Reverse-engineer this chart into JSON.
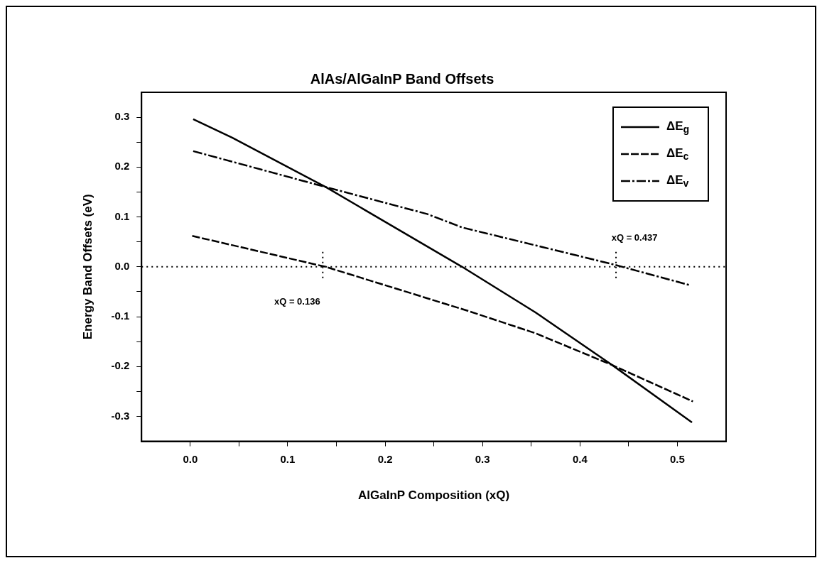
{
  "chart_data": {
    "type": "line",
    "title": "AlAs/AlGaInP Band Offsets",
    "xlabel": "AlGaInP Composition (xQ)",
    "ylabel": "Energy Band Offsets (eV)",
    "xlim": [
      -0.05,
      0.55
    ],
    "ylim": [
      -0.35,
      0.35
    ],
    "xticks": [
      {
        "value": 0,
        "label": "0.0"
      },
      {
        "value": 0.05,
        "label": null
      },
      0.1,
      {
        "value": 0.15,
        "label": null
      },
      0.2,
      {
        "value": 0.25,
        "label": null
      },
      0.3,
      {
        "value": 0.35,
        "label": null
      },
      0.4,
      {
        "value": 0.45,
        "label": null
      },
      0.5
    ],
    "yticks": [
      -0.3,
      {
        "value": -0.25,
        "label": null
      },
      -0.2,
      {
        "value": -0.15,
        "label": null
      },
      -0.1,
      {
        "value": -0.05,
        "label": null
      },
      {
        "value": 0,
        "label": "0.0"
      },
      {
        "value": 0.05,
        "label": null
      },
      0.1,
      {
        "value": 0.15,
        "label": null
      },
      0.2,
      {
        "value": 0.25,
        "label": null
      },
      0.3
    ],
    "grid": false,
    "legend": "top right",
    "marker": "none",
    "series": [
      {
        "name": "ΔE$_{g}$",
        "color": "#000000",
        "line_style": "solid",
        "x": [
          0.003,
          0.043,
          0.139,
          0.279,
          0.354,
          0.433,
          0.515
        ],
        "values": [
          0.296,
          0.259,
          0.16,
          0.0,
          -0.091,
          -0.197,
          -0.312
        ]
      },
      {
        "name": "ΔE$_{c}$",
        "color": "#000000",
        "line_style": "dashed",
        "x": [
          0.002,
          0.139,
          0.286,
          0.354,
          0.433,
          0.516
        ],
        "values": [
          0.062,
          0.0,
          -0.089,
          -0.133,
          -0.197,
          -0.27
        ]
      },
      {
        "name": "ΔE$_{v}$",
        "color": "#000000",
        "line_style": "dashdot",
        "x": [
          0.003,
          0.139,
          0.243,
          0.279,
          0.436,
          0.513
        ],
        "values": [
          0.232,
          0.16,
          0.106,
          0.079,
          0.004,
          -0.037
        ]
      }
    ],
    "ref_lines": [
      {
        "axis": "y",
        "value": 0,
        "line_style": "dotted"
      },
      {
        "axis": "x",
        "value": 0.136,
        "line_style": "dotted",
        "label": "xQ = 0.136"
      },
      {
        "axis": "x",
        "value": 0.437,
        "line_style": "dotted",
        "label": "xQ = 0.437"
      }
    ]
  }
}
